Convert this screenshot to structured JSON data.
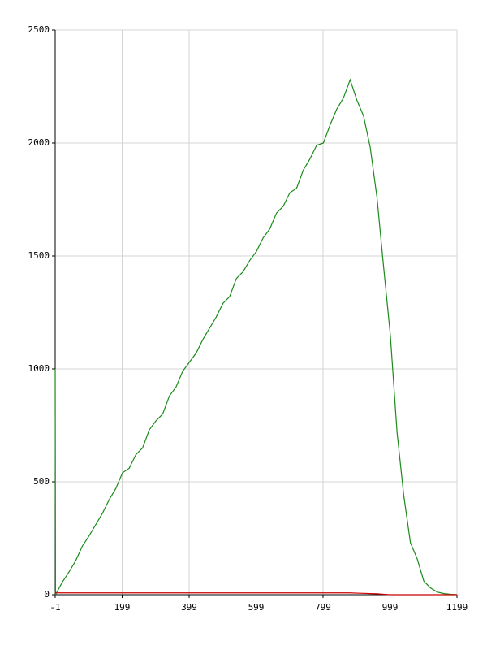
{
  "chart_data": {
    "type": "line",
    "x": [
      -1,
      0,
      20,
      40,
      60,
      80,
      100,
      120,
      140,
      160,
      180,
      200,
      220,
      240,
      260,
      280,
      300,
      320,
      340,
      360,
      380,
      400,
      420,
      440,
      460,
      480,
      500,
      520,
      540,
      560,
      580,
      600,
      620,
      640,
      660,
      680,
      700,
      720,
      740,
      760,
      780,
      800,
      820,
      840,
      860,
      880,
      900,
      920,
      940,
      960,
      980,
      1000,
      1020,
      1040,
      1060,
      1080,
      1100,
      1120,
      1140,
      1160,
      1180,
      1199
    ],
    "series": [
      {
        "color": "#1a8a1a",
        "values": [
          1000,
          0,
          55,
          100,
          150,
          215,
          260,
          310,
          360,
          420,
          470,
          540,
          560,
          620,
          650,
          730,
          770,
          800,
          880,
          920,
          990,
          1030,
          1070,
          1130,
          1180,
          1230,
          1290,
          1320,
          1400,
          1430,
          1480,
          1520,
          1580,
          1620,
          1690,
          1720,
          1780,
          1800,
          1880,
          1930,
          1990,
          2000,
          2080,
          2150,
          2200,
          2280,
          2190,
          2120,
          1980,
          1760,
          1450,
          1150,
          720,
          440,
          230,
          160,
          60,
          30,
          12,
          5,
          2,
          0
        ]
      },
      {
        "color": "#cc0000",
        "values": [
          8,
          8,
          8,
          8,
          8,
          8,
          8,
          8,
          8,
          8,
          8,
          8,
          8,
          8,
          8,
          8,
          8,
          8,
          8,
          8,
          8,
          8,
          8,
          8,
          8,
          8,
          8,
          8,
          8,
          8,
          8,
          8,
          8,
          8,
          8,
          8,
          8,
          8,
          8,
          8,
          8,
          8,
          8,
          8,
          8,
          8,
          7,
          6,
          5,
          4,
          2,
          0,
          0,
          0,
          0,
          0,
          0,
          0,
          0,
          0,
          0,
          0
        ]
      }
    ],
    "xlim": [
      -1,
      1199
    ],
    "xticks": [
      -1,
      199,
      399,
      599,
      799,
      999,
      1199
    ],
    "ylim": [
      0,
      2500
    ],
    "yticks": [
      0,
      500,
      1000,
      1500,
      2000,
      2500
    ],
    "grid": true
  }
}
